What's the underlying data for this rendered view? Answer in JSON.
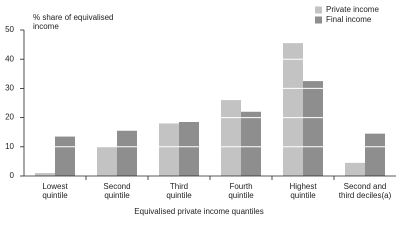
{
  "chart_data": {
    "type": "bar",
    "y_label": "% share of equivalised\nincome",
    "x_label": "Equivalised private income quantiles",
    "categories": [
      "Lowest\nquintile",
      "Second\nquintile",
      "Third\nquintile",
      "Fourth\nquintile",
      "Highest\nquintile",
      "Second and\nthird deciles(a)"
    ],
    "series": [
      {
        "name": "Private income",
        "color": "#c3c3c3",
        "values": [
          1,
          10,
          18,
          26,
          45.5,
          4.5
        ]
      },
      {
        "name": "Final income",
        "color": "#8e8e8e",
        "values": [
          13.5,
          15.5,
          18.5,
          22,
          32.5,
          14.5
        ]
      }
    ],
    "ylim": [
      0,
      50
    ],
    "yticks": [
      0,
      10,
      20,
      30,
      40,
      50
    ],
    "grid": true,
    "legend": "top-right"
  }
}
